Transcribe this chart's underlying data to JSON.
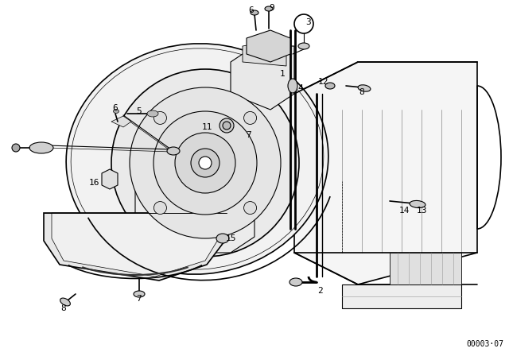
{
  "bg_color": "#ffffff",
  "line_color": "#000000",
  "fig_width": 6.4,
  "fig_height": 4.48,
  "dpi": 100,
  "watermark": "00003·07",
  "watermark_fontsize": 7
}
